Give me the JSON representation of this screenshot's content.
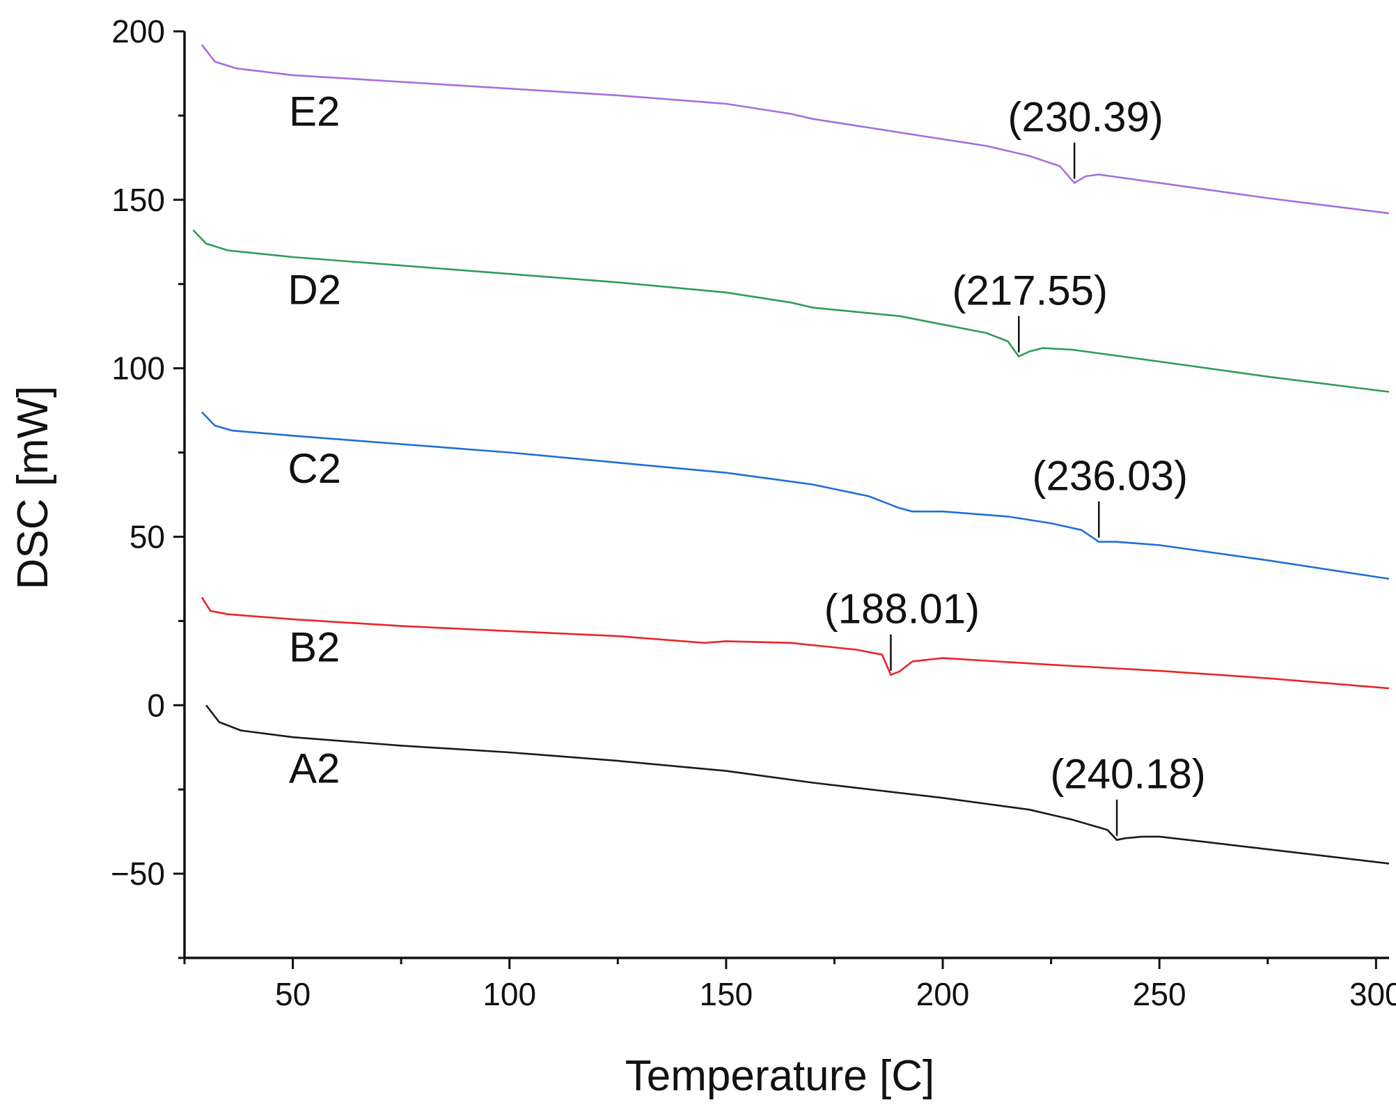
{
  "chart_data": {
    "type": "line",
    "title": "",
    "xlabel": "Temperature [C]",
    "ylabel": "DSC [mW]",
    "xlim": [
      25,
      303
    ],
    "ylim": [
      -75,
      200
    ],
    "x_ticks": [
      50,
      100,
      150,
      200,
      250,
      300
    ],
    "y_ticks": [
      -50,
      0,
      50,
      100,
      150,
      200
    ],
    "legend": "none",
    "grid": false,
    "series": [
      {
        "name": "A2",
        "color": "#1a1a1a",
        "label_at": [
          55,
          -23
        ],
        "points": [
          [
            30,
            0
          ],
          [
            33,
            -5
          ],
          [
            38,
            -7.5
          ],
          [
            50,
            -9.5
          ],
          [
            75,
            -12
          ],
          [
            100,
            -14
          ],
          [
            125,
            -16.5
          ],
          [
            150,
            -19.5
          ],
          [
            170,
            -23
          ],
          [
            180,
            -24.5
          ],
          [
            200,
            -27.5
          ],
          [
            220,
            -31
          ],
          [
            230,
            -34
          ],
          [
            238,
            -37
          ],
          [
            240.18,
            -40
          ],
          [
            242,
            -39.5
          ],
          [
            246,
            -39
          ],
          [
            250,
            -39
          ],
          [
            260,
            -40.5
          ],
          [
            280,
            -43.5
          ],
          [
            303,
            -47
          ]
        ],
        "peak": {
          "x": 240.18,
          "y": -40,
          "label": "(240.18)"
        }
      },
      {
        "name": "B2",
        "color": "#e8262b",
        "label_at": [
          55,
          13
        ],
        "points": [
          [
            29,
            32
          ],
          [
            31,
            28
          ],
          [
            35,
            27
          ],
          [
            50,
            25.5
          ],
          [
            75,
            23.5
          ],
          [
            100,
            22
          ],
          [
            125,
            20.5
          ],
          [
            145,
            18.5
          ],
          [
            150,
            19
          ],
          [
            165,
            18.5
          ],
          [
            180,
            16.5
          ],
          [
            186,
            15
          ],
          [
            188.01,
            9
          ],
          [
            190,
            10
          ],
          [
            193,
            13
          ],
          [
            200,
            14
          ],
          [
            225,
            12
          ],
          [
            250,
            10.2
          ],
          [
            275,
            8
          ],
          [
            303,
            5
          ]
        ],
        "peak": {
          "x": 188.01,
          "y": 9,
          "label": "(188.01)"
        }
      },
      {
        "name": "C2",
        "color": "#1f6fd6",
        "label_at": [
          55,
          66
        ],
        "points": [
          [
            29,
            87
          ],
          [
            32,
            83
          ],
          [
            36,
            81.5
          ],
          [
            50,
            80
          ],
          [
            75,
            77.5
          ],
          [
            100,
            75
          ],
          [
            125,
            72
          ],
          [
            150,
            69
          ],
          [
            170,
            65.5
          ],
          [
            183,
            62
          ],
          [
            190,
            58.5
          ],
          [
            193,
            57.5
          ],
          [
            200,
            57.5
          ],
          [
            215,
            56
          ],
          [
            225,
            54
          ],
          [
            232,
            52
          ],
          [
            236.03,
            48.5
          ],
          [
            240,
            48.5
          ],
          [
            250,
            47.5
          ],
          [
            275,
            43
          ],
          [
            303,
            37.5
          ]
        ],
        "peak": {
          "x": 236.03,
          "y": 48.5,
          "label": "(236.03)"
        }
      },
      {
        "name": "D2",
        "color": "#2f9c57",
        "label_at": [
          55,
          119
        ],
        "points": [
          [
            27,
            141
          ],
          [
            30,
            137
          ],
          [
            35,
            135
          ],
          [
            50,
            133
          ],
          [
            75,
            130.5
          ],
          [
            100,
            128
          ],
          [
            125,
            125.5
          ],
          [
            150,
            122.5
          ],
          [
            165,
            119.5
          ],
          [
            170,
            118
          ],
          [
            190,
            115.5
          ],
          [
            200,
            113
          ],
          [
            210,
            110.5
          ],
          [
            215,
            108
          ],
          [
            217.55,
            103.5
          ],
          [
            220,
            105
          ],
          [
            223,
            106
          ],
          [
            230,
            105.5
          ],
          [
            250,
            102
          ],
          [
            275,
            97.5
          ],
          [
            303,
            93
          ]
        ],
        "peak": {
          "x": 217.55,
          "y": 103.5,
          "label": "(217.55)"
        }
      },
      {
        "name": "E2",
        "color": "#a66ee0",
        "label_at": [
          55,
          172
        ],
        "points": [
          [
            29,
            196
          ],
          [
            32,
            191
          ],
          [
            37,
            189
          ],
          [
            50,
            187
          ],
          [
            75,
            185
          ],
          [
            100,
            183
          ],
          [
            125,
            181
          ],
          [
            150,
            178.5
          ],
          [
            165,
            175.5
          ],
          [
            170,
            174
          ],
          [
            190,
            170
          ],
          [
            210,
            166
          ],
          [
            220,
            163
          ],
          [
            227,
            160
          ],
          [
            230.39,
            155
          ],
          [
            233,
            157
          ],
          [
            236,
            157.5
          ],
          [
            250,
            155
          ],
          [
            275,
            150.5
          ],
          [
            303,
            146
          ]
        ],
        "peak": {
          "x": 230.39,
          "y": 155,
          "label": "(230.39)"
        }
      }
    ]
  }
}
